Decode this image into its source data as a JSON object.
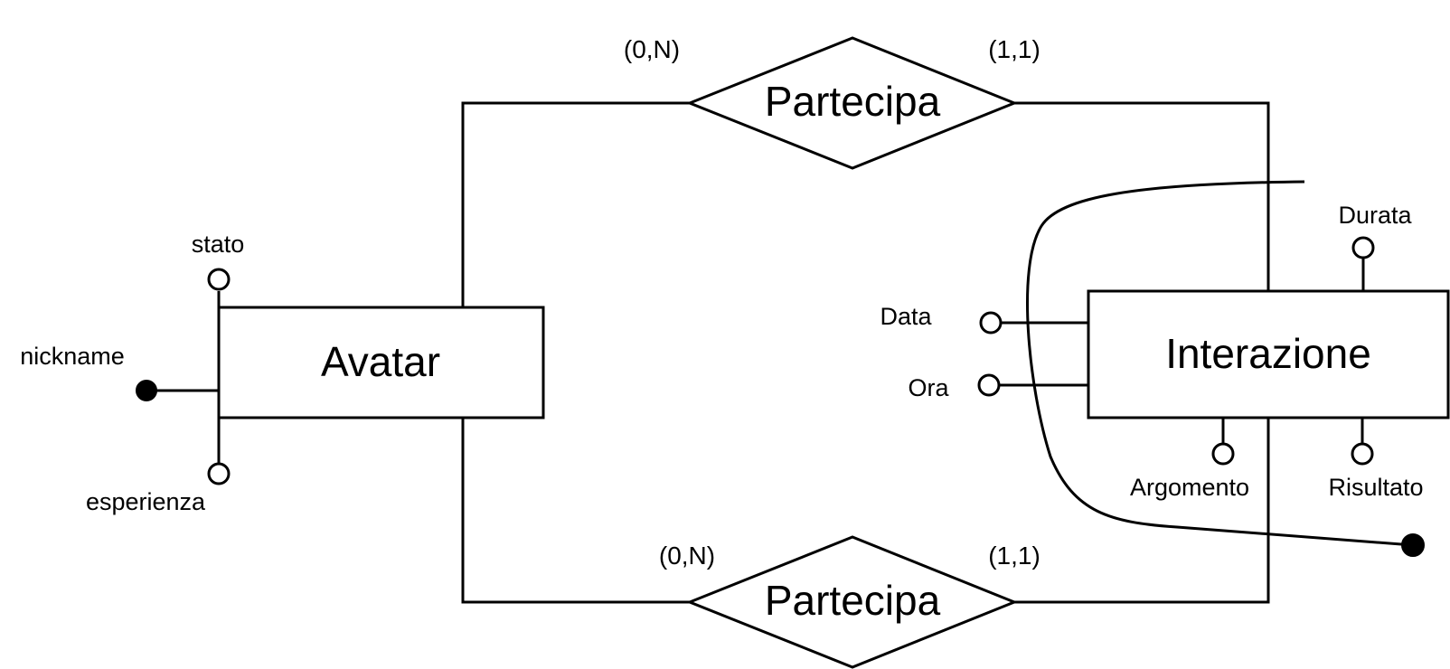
{
  "entities": {
    "avatar": "Avatar",
    "interazione": "Interazione"
  },
  "relationships": {
    "top": {
      "label": "Partecipa",
      "card_avatar": "(0,N)",
      "card_interazione": "(1,1)"
    },
    "bottom": {
      "label": "Partecipa",
      "card_avatar": "(0,N)",
      "card_interazione": "(1,1)"
    }
  },
  "attributes": {
    "avatar": {
      "stato": "stato",
      "nickname": "nickname",
      "esperienza": "esperienza"
    },
    "interazione": {
      "durata": "Durata",
      "data": "Data",
      "ora": "Ora",
      "argomento": "Argomento",
      "risultato": "Risultato"
    }
  }
}
